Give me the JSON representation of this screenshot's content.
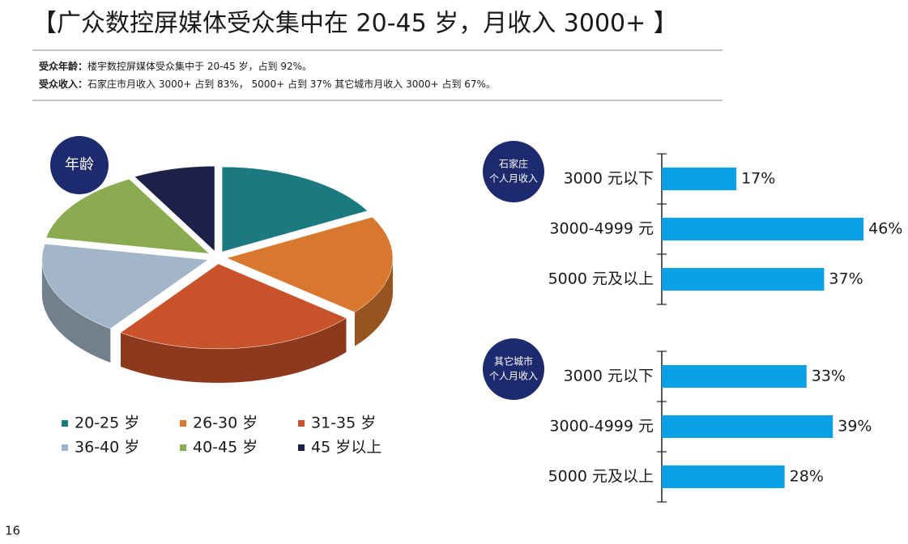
{
  "header": {
    "title": "【广众数控屏媒体受众集中在 20-45 岁，月收入 3000+ 】",
    "lines": [
      {
        "label": "受众年龄：",
        "text": "楼宇数控屏媒体受众集中于 20-45 岁，占到 92%。"
      },
      {
        "label": "受众收入：",
        "text": "石家庄市月收入 3000+ 占到 83%， 5000+ 占到 37%  其它城市月收入 3000+ 占到 67%。"
      }
    ]
  },
  "page_number": "16",
  "chart_data": [
    {
      "type": "pie",
      "title": "年龄",
      "categories": [
        "20-25 岁",
        "26-30 岁",
        "31-35 岁",
        "36-40 岁",
        "40-45 岁",
        "45 岁以上"
      ],
      "values": [
        17,
        19,
        24,
        18,
        14,
        8
      ],
      "colors": [
        "#1b7a80",
        "#d8782e",
        "#c8522a",
        "#a3b6c9",
        "#8aab50",
        "#1d2148"
      ]
    },
    {
      "type": "barh",
      "title_lines": [
        "石家庄",
        "个人月收入"
      ],
      "categories": [
        "3000 元以下",
        "3000-4999 元",
        "5000 元及以上"
      ],
      "values": [
        17,
        46,
        37
      ],
      "value_labels": [
        "17%",
        "46%",
        "37%"
      ],
      "color": "#0aa0e6",
      "xlim": [
        0,
        48
      ]
    },
    {
      "type": "barh",
      "title_lines": [
        "其它城市",
        "个人月收入"
      ],
      "categories": [
        "3000 元以下",
        "3000-4999 元",
        "5000 元及以上"
      ],
      "values": [
        33,
        39,
        28
      ],
      "value_labels": [
        "33%",
        "39%",
        "28%"
      ],
      "color": "#0aa0e6",
      "xlim": [
        0,
        48
      ]
    }
  ]
}
